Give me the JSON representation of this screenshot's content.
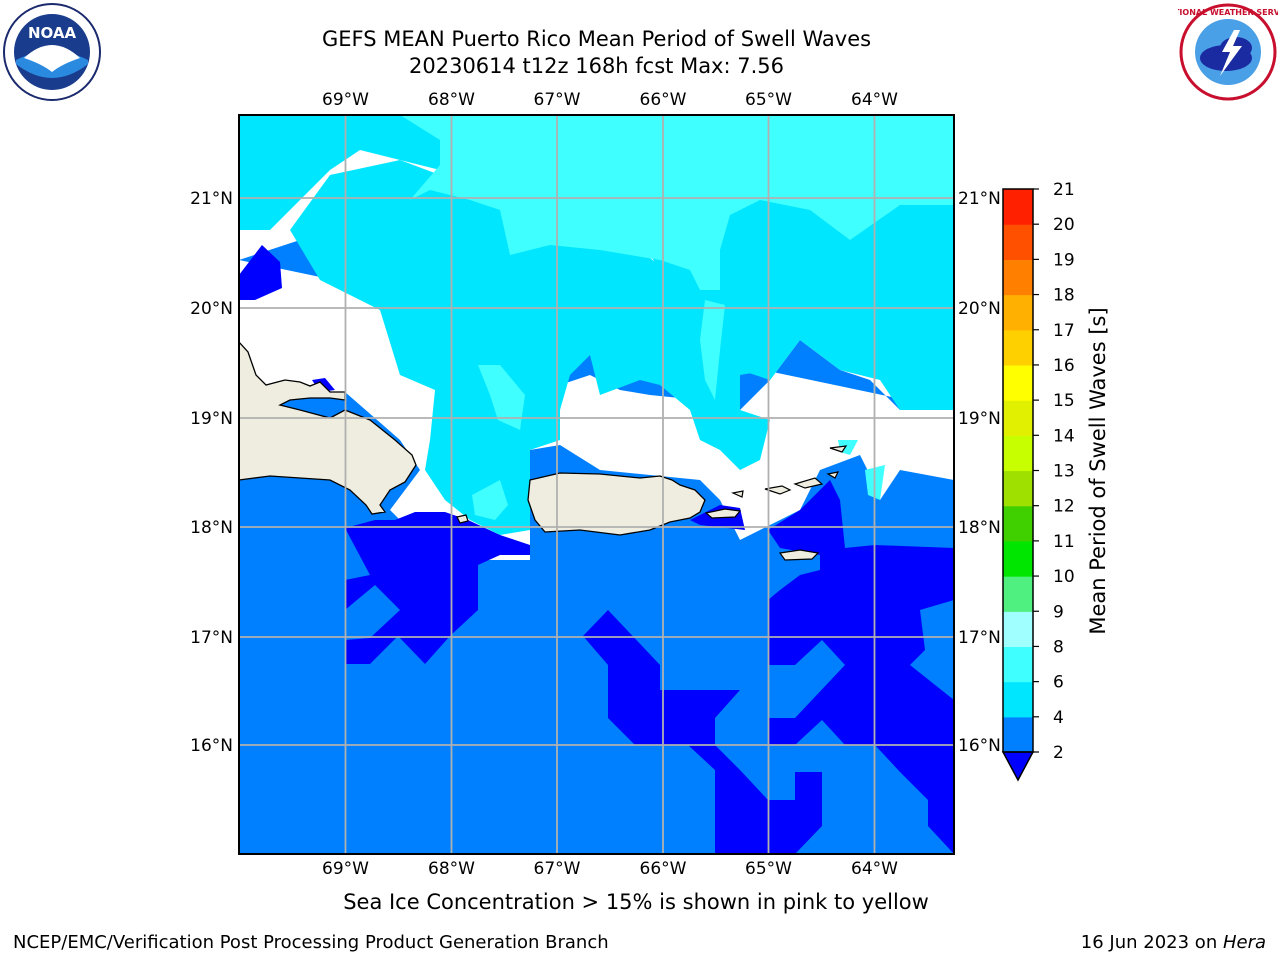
{
  "title": {
    "line1": "GEFS MEAN Puerto Rico Mean Period of Swell Waves",
    "line2": "20230614 t12z 168h fcst   Max: 7.56"
  },
  "logos": {
    "left": "noaa-logo",
    "left_text": "NOAA",
    "right": "nws-logo",
    "right_text": "NATIONAL WEATHER SERVICE"
  },
  "map": {
    "lon_labels": [
      "69°W",
      "68°W",
      "67°W",
      "66°W",
      "65°W",
      "64°W"
    ],
    "lat_labels": [
      "21°N",
      "20°N",
      "19°N",
      "18°N",
      "17°N",
      "16°N"
    ],
    "lon_range": [
      -70.0,
      -63.25
    ],
    "lat_range": [
      15.0,
      21.75
    ]
  },
  "colorbar": {
    "title": "Mean Period of Swell Waves [s]",
    "levels": [
      "2",
      "4",
      "6",
      "8",
      "9",
      "10",
      "11",
      "12",
      "13",
      "14",
      "15",
      "16",
      "17",
      "18",
      "19",
      "20",
      "21"
    ],
    "colors": [
      "#0080ff",
      "#00e6ff",
      "#40ffff",
      "#a0ffff",
      "#50f080",
      "#00e600",
      "#40d000",
      "#a0e000",
      "#c8ff00",
      "#e0f000",
      "#ffff00",
      "#ffd000",
      "#ffb000",
      "#ff8000",
      "#ff5000",
      "#ff2000",
      "#ff0000"
    ],
    "under_color": "#0000ff"
  },
  "note": "Sea Ice Concentration > 15% is shown in pink to yellow",
  "footer": {
    "left": "NCEP/EMC/Verification Post Processing Product Generation Branch",
    "right_date": "16 Jun 2023 on ",
    "right_machine": "Hera"
  }
}
